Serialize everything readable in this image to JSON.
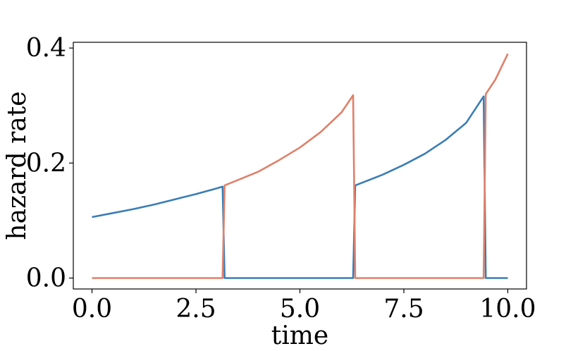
{
  "chart_data": {
    "type": "line",
    "xlabel": "time",
    "ylabel": "hazard rate",
    "xlim": [
      -0.45,
      10.45
    ],
    "ylim": [
      -0.019,
      0.41
    ],
    "xticks": [
      0,
      2.5,
      5,
      7.5,
      10
    ],
    "xtick_labels": [
      "0.0",
      "2.5",
      "5.0",
      "7.5",
      "10.0"
    ],
    "yticks": [
      0,
      0.2,
      0.4
    ],
    "ytick_labels": [
      "0.0",
      "0.2",
      "0.4"
    ],
    "grid": false,
    "legend": "none",
    "series": [
      {
        "color": "#3a7db5",
        "points": [
          [
            0.0,
            0.106
          ],
          [
            0.5,
            0.113
          ],
          [
            1.0,
            0.12
          ],
          [
            1.5,
            0.128
          ],
          [
            2.0,
            0.137
          ],
          [
            2.5,
            0.146
          ],
          [
            3.0,
            0.156
          ],
          [
            3.14,
            0.159
          ],
          [
            3.19,
            0.0
          ],
          [
            6.28,
            0.0
          ],
          [
            6.33,
            0.161
          ],
          [
            7.0,
            0.18
          ],
          [
            7.5,
            0.197
          ],
          [
            8.0,
            0.216
          ],
          [
            8.5,
            0.24
          ],
          [
            9.0,
            0.27
          ],
          [
            9.42,
            0.316
          ],
          [
            9.47,
            0.0
          ],
          [
            10.0,
            0.0
          ]
        ]
      },
      {
        "color": "#e0806a",
        "points": [
          [
            0.0,
            0.0
          ],
          [
            3.14,
            0.0
          ],
          [
            3.19,
            0.161
          ],
          [
            4.0,
            0.185
          ],
          [
            4.5,
            0.205
          ],
          [
            5.0,
            0.227
          ],
          [
            5.5,
            0.254
          ],
          [
            6.0,
            0.288
          ],
          [
            6.28,
            0.318
          ],
          [
            6.33,
            0.0
          ],
          [
            9.42,
            0.0
          ],
          [
            9.47,
            0.32
          ],
          [
            9.7,
            0.345
          ],
          [
            10.0,
            0.39
          ]
        ]
      }
    ]
  }
}
